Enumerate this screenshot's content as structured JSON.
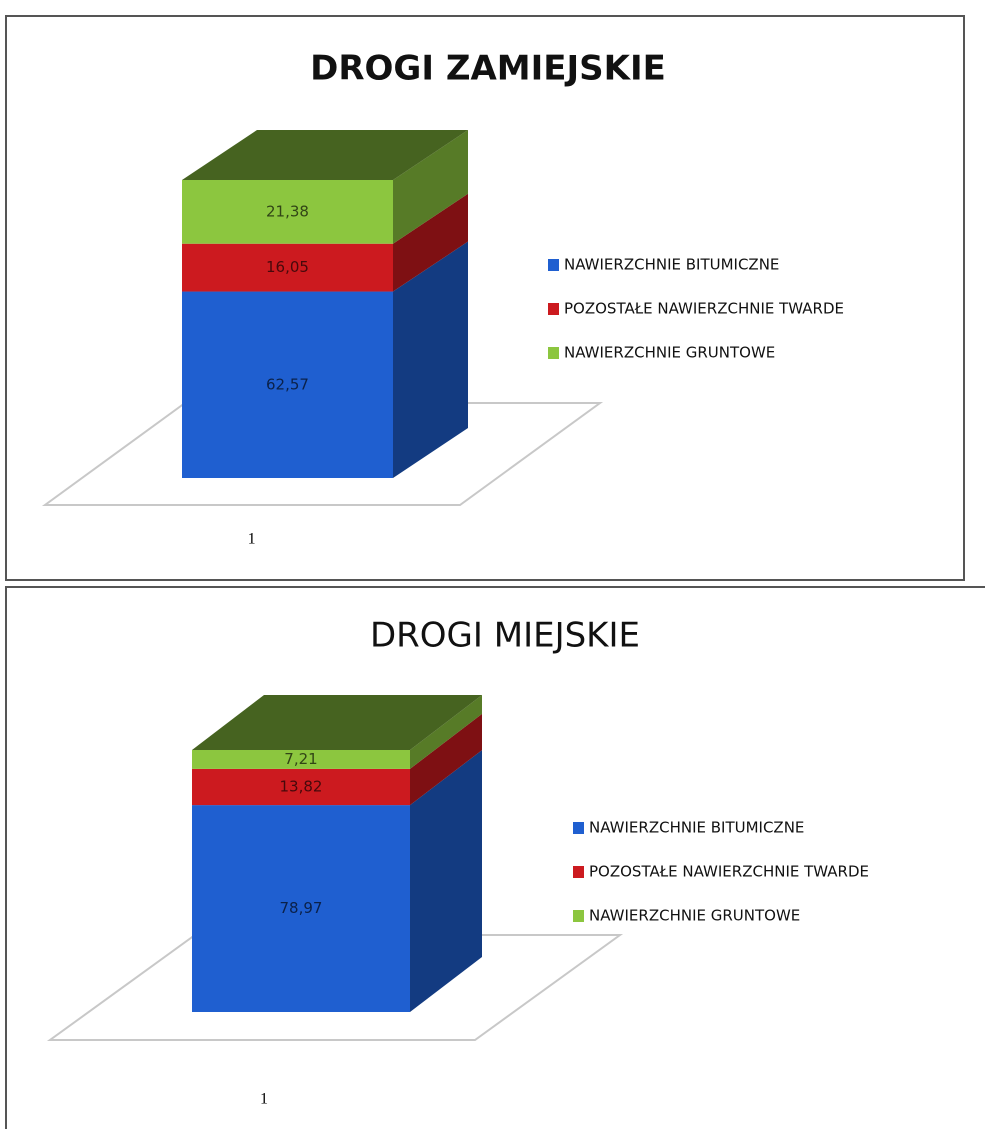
{
  "chart_data": [
    {
      "type": "bar",
      "title": "DROGI ZAMIEJSKIE",
      "categories": [
        "1"
      ],
      "series": [
        {
          "name": "NAWIERZCHNIE BITUMICZNE",
          "color": "#1f5fd0",
          "values": [
            62.57
          ],
          "value_labels": [
            "62,57"
          ]
        },
        {
          "name": "POZOSTAŁE NAWIERZCHNIE TWARDE",
          "color": "#cc1a1f",
          "values": [
            16.05
          ],
          "value_labels": [
            "16,05"
          ]
        },
        {
          "name": "NAWIERZCHNIE GRUNTOWE",
          "color": "#8cc63f",
          "values": [
            21.38
          ],
          "value_labels": [
            "21,38"
          ]
        }
      ]
    },
    {
      "type": "bar",
      "title": "DROGI MIEJSKIE",
      "categories": [
        "1"
      ],
      "series": [
        {
          "name": "NAWIERZCHNIE BITUMICZNE",
          "color": "#1f5fd0",
          "values": [
            78.97
          ],
          "value_labels": [
            "78,97"
          ]
        },
        {
          "name": "POZOSTAŁE NAWIERZCHNIE TWARDE",
          "color": "#cc1a1f",
          "values": [
            13.82
          ],
          "value_labels": [
            "13,82"
          ]
        },
        {
          "name": "NAWIERZCHNIE GRUNTOWE",
          "color": "#8cc63f",
          "values": [
            7.21
          ],
          "value_labels": [
            "7,21"
          ]
        }
      ]
    }
  ]
}
